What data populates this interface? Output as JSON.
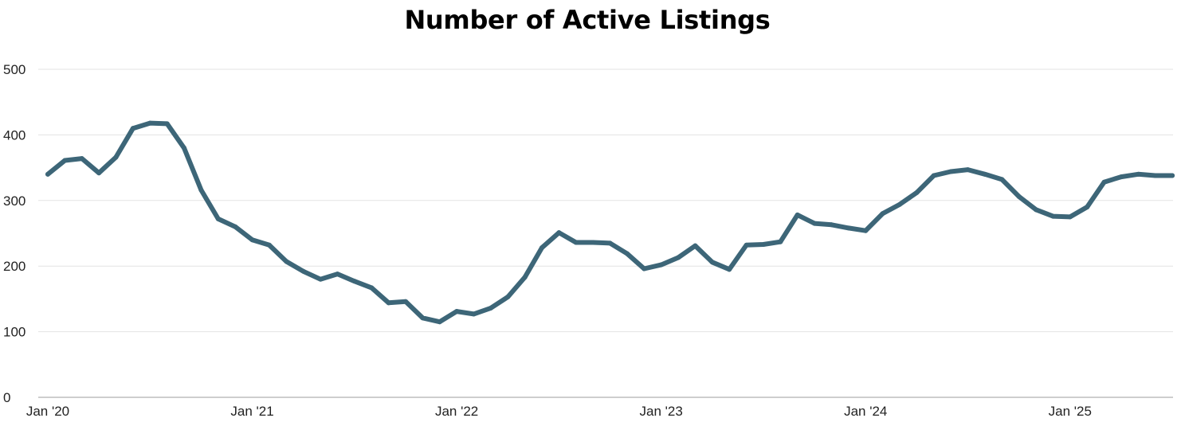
{
  "chart_data": {
    "type": "line",
    "title": "Number of Active Listings",
    "xlabel": "",
    "ylabel": "",
    "ylim": [
      0,
      500
    ],
    "yticks": [
      "0",
      "100",
      "200",
      "300",
      "400",
      "500"
    ],
    "xtick_labels": [
      "Jan '20",
      "Jan '21",
      "Jan '22",
      "Jan '23",
      "Jan '24",
      "Jan '25"
    ],
    "grid": true,
    "legend": "none",
    "line_color": "#3d6678",
    "x": [
      "2020-01",
      "2020-02",
      "2020-03",
      "2020-04",
      "2020-05",
      "2020-06",
      "2020-07",
      "2020-08",
      "2020-09",
      "2020-10",
      "2020-11",
      "2020-12",
      "2021-01",
      "2021-02",
      "2021-03",
      "2021-04",
      "2021-05",
      "2021-06",
      "2021-07",
      "2021-08",
      "2021-09",
      "2021-10",
      "2021-11",
      "2021-12",
      "2022-01",
      "2022-02",
      "2022-03",
      "2022-04",
      "2022-05",
      "2022-06",
      "2022-07",
      "2022-08",
      "2022-09",
      "2022-10",
      "2022-11",
      "2022-12",
      "2023-01",
      "2023-02",
      "2023-03",
      "2023-04",
      "2023-05",
      "2023-06",
      "2023-07",
      "2023-08",
      "2023-09",
      "2023-10",
      "2023-11",
      "2023-12",
      "2024-01",
      "2024-02",
      "2024-03",
      "2024-04",
      "2024-05",
      "2024-06",
      "2024-07",
      "2024-08",
      "2024-09",
      "2024-10",
      "2024-11",
      "2024-12",
      "2025-01",
      "2025-02",
      "2025-03",
      "2025-04",
      "2025-05",
      "2025-06",
      "2025-07"
    ],
    "values": [
      340,
      361,
      364,
      342,
      366,
      410,
      418,
      417,
      380,
      316,
      272,
      260,
      240,
      232,
      207,
      192,
      180,
      188,
      177,
      167,
      144,
      146,
      121,
      115,
      131,
      127,
      136,
      153,
      183,
      228,
      251,
      236,
      236,
      235,
      219,
      196,
      202,
      213,
      231,
      206,
      195,
      232,
      233,
      237,
      278,
      265,
      263,
      258,
      254,
      280,
      294,
      312,
      338,
      344,
      347,
      340,
      332,
      306,
      286,
      276,
      275,
      290,
      328,
      336,
      340,
      338,
      338
    ]
  }
}
